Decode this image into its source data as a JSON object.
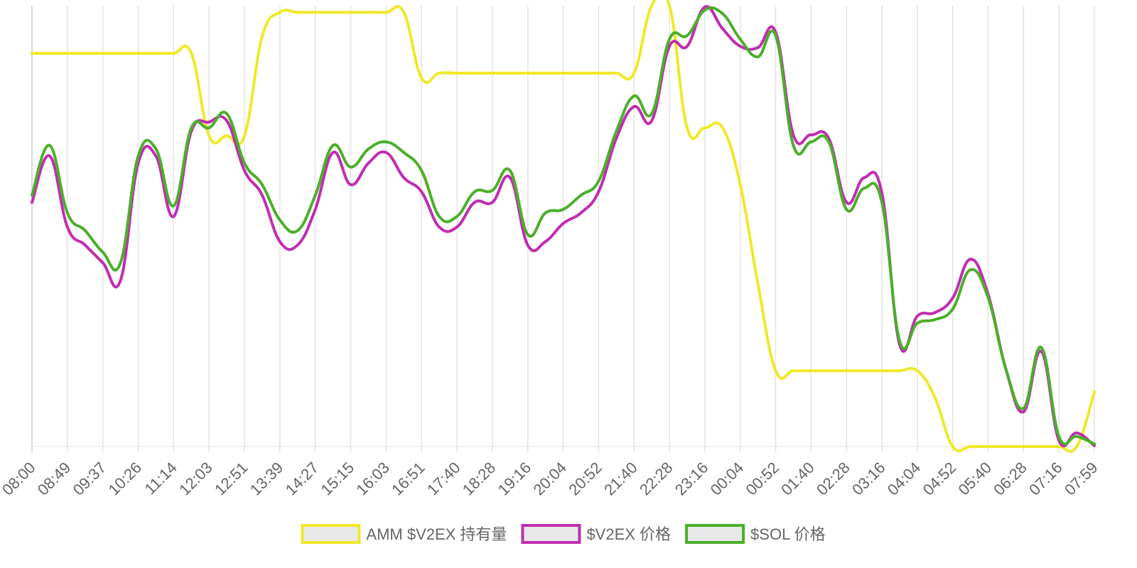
{
  "chart_data": {
    "type": "line",
    "categories": [
      "08:00",
      null,
      "08:49",
      null,
      "09:37",
      null,
      "10:26",
      null,
      "11:14",
      null,
      "12:03",
      null,
      "12:51",
      null,
      "13:39",
      null,
      "14:27",
      null,
      "15:15",
      null,
      "16:03",
      null,
      "16:51",
      null,
      "17:40",
      null,
      "18:28",
      null,
      "19:16",
      null,
      "20:04",
      null,
      "20:52",
      null,
      "21:40",
      null,
      "22:28",
      null,
      "23:16",
      null,
      "00:04",
      null,
      "00:52",
      null,
      "01:40",
      null,
      "02:28",
      null,
      "03:16",
      null,
      "04:04",
      null,
      "04:52",
      null,
      "05:40",
      null,
      "06:28",
      null,
      "07:16",
      null,
      "07:59"
    ],
    "series": [
      {
        "name": "AMM $V2EX 持有量",
        "color": "#f0e82a",
        "values": [
          89.2,
          89.2,
          89.2,
          89.2,
          89.2,
          89.2,
          89.2,
          89.2,
          89.2,
          89.2,
          70.5,
          70.5,
          70.5,
          93,
          98.5,
          98.5,
          98.5,
          98.5,
          98.5,
          98.5,
          98.5,
          98.5,
          83.6,
          84.7,
          84.7,
          84.7,
          84.7,
          84.7,
          84.7,
          84.7,
          84.7,
          84.7,
          84.7,
          84.7,
          84.7,
          100,
          100,
          72.3,
          72.3,
          72.3,
          59.4,
          36.9,
          17.2,
          17.2,
          17.2,
          17.2,
          17.2,
          17.2,
          17.2,
          17.2,
          17.2,
          11.1,
          0,
          0,
          0,
          0,
          0,
          0,
          0,
          0,
          12.4
        ]
      },
      {
        "name": "$V2EX 价格",
        "color": "#c02db0",
        "values": [
          55.4,
          65.9,
          49.8,
          45.7,
          41.7,
          37.7,
          64.3,
          65.9,
          52.2,
          71.5,
          73.6,
          73.9,
          62.6,
          57.0,
          46.5,
          45.7,
          53.8,
          66.7,
          59.4,
          64.3,
          66.7,
          61.0,
          57.8,
          49.8,
          49.8,
          55.4,
          55.4,
          61.0,
          45.7,
          46.5,
          50.6,
          53.0,
          57.8,
          69.9,
          77.1,
          73.9,
          90.8,
          90.8,
          99.7,
          94.8,
          90.8,
          90.5,
          94.0,
          70.7,
          70.7,
          69.9,
          55.4,
          61.0,
          57.5,
          23.2,
          29.6,
          30.4,
          33.7,
          42.5,
          34.5,
          17.6,
          7.9,
          21.6,
          1.4,
          3.1,
          0.2
        ]
      },
      {
        "name": "$SOL 价格",
        "color": "#4caf2a",
        "values": [
          57.0,
          68.3,
          53.0,
          49.0,
          44.1,
          41.7,
          65.9,
          67.5,
          54.6,
          72.3,
          72.3,
          75.5,
          64.3,
          59.4,
          51.4,
          49.0,
          57.0,
          68.3,
          63.4,
          67.5,
          69.1,
          66.7,
          62.6,
          52.2,
          52.2,
          57.8,
          58.1,
          62.6,
          48.1,
          53.0,
          53.8,
          57.0,
          60.2,
          71.5,
          79.5,
          75.5,
          92.4,
          93.2,
          99.0,
          98.2,
          92.4,
          88.4,
          93.2,
          68.3,
          69.1,
          69.1,
          53.8,
          58.6,
          55.4,
          24.0,
          28.0,
          28.8,
          31.2,
          40.1,
          33.8,
          17.6,
          8.7,
          22.5,
          2.3,
          2.3,
          0.6
        ]
      }
    ],
    "ylim": [
      0,
      100
    ],
    "grid": true,
    "legend": "bottom"
  }
}
